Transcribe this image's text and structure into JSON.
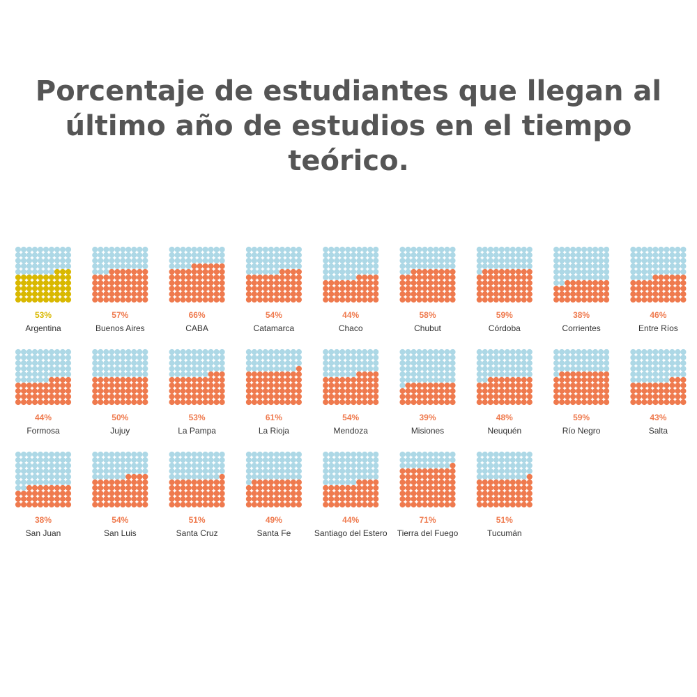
{
  "title": "Porcentaje de estudiantes que llegan al último año de estudios en el tiempo teórico.",
  "colors": {
    "empty": "#add8e6",
    "filled": "#ef7a4e",
    "highlight": "#d9b800",
    "label_text": "#333333",
    "title_text": "#555555"
  },
  "chart_data": {
    "type": "waffle",
    "title": "Porcentaje de estudiantes que llegan al último año de estudios en el tiempo teórico.",
    "grid": {
      "rows": 10,
      "cols": 10
    },
    "units": "%",
    "highlight": "Argentina",
    "categories": [
      "Argentina",
      "Buenos Aires",
      "CABA",
      "Catamarca",
      "Chaco",
      "Chubut",
      "Córdoba",
      "Corrientes",
      "Entre Ríos",
      "Formosa",
      "Jujuy",
      "La Pampa",
      "La Rioja",
      "Mendoza",
      "Misiones",
      "Neuquén",
      "Río Negro",
      "Salta",
      "San Juan",
      "San Luis",
      "Santa Cruz",
      "Santa Fe",
      "Santiago del Estero",
      "Tierra del Fuego",
      "Tucumán"
    ],
    "values": [
      53,
      57,
      66,
      54,
      44,
      58,
      59,
      38,
      46,
      44,
      50,
      53,
      61,
      54,
      39,
      48,
      59,
      43,
      38,
      54,
      51,
      49,
      44,
      71,
      51
    ],
    "value_labels": [
      "53%",
      "57%",
      "66%",
      "54%",
      "44%",
      "58%",
      "59%",
      "38%",
      "46%",
      "44%",
      "50%",
      "53%",
      "61%",
      "54%",
      "39%",
      "48%",
      "59%",
      "43%",
      "38%",
      "54%",
      "51%",
      "49%",
      "44%",
      "71%",
      "51%"
    ]
  }
}
